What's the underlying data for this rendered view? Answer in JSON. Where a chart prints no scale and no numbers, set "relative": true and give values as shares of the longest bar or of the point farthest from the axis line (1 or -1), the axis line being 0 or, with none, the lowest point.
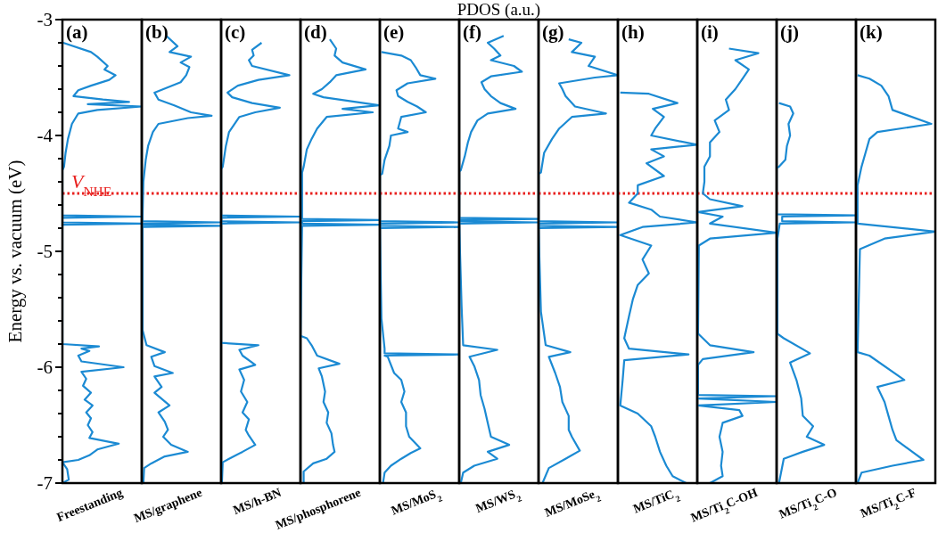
{
  "chart_data": [
    {
      "type": "line",
      "orientation": "horizontal",
      "relative": true,
      "title": "(a)",
      "xlabel": "Freestanding",
      "ylabel": "Energy vs. vacuum (eV)",
      "annotations": [
        "PDOS (a.u.)"
      ],
      "color": "#1b8ad3",
      "ylim": [
        -7,
        -3
      ],
      "yticks": [
        -7,
        {
          "value": -6.8,
          "label": null
        },
        {
          "value": -6.6,
          "label": null
        },
        {
          "value": -6.4,
          "label": null
        },
        {
          "value": -6.2,
          "label": null
        },
        -6,
        {
          "value": -5.8,
          "label": null
        },
        {
          "value": -5.6,
          "label": null
        },
        {
          "value": -5.4,
          "label": null
        },
        {
          "value": -5.2,
          "label": null
        },
        -5,
        {
          "value": -4.8,
          "label": null
        },
        {
          "value": -4.6,
          "label": null
        },
        {
          "value": -4.4,
          "label": null
        },
        {
          "value": -4.2,
          "label": null
        },
        -4,
        {
          "value": -3.8,
          "label": null
        },
        {
          "value": -3.6,
          "label": null
        },
        {
          "value": -3.4,
          "label": null
        },
        {
          "value": -3.2,
          "label": null
        },
        -3
      ],
      "ref_lines": [
        {
          "axis": "y",
          "value": -4.5,
          "label": "V$_{NHE}$",
          "color": "#e8201e",
          "line_style": "dotted"
        }
      ],
      "x": [
        -3.2,
        -3.28,
        -3.32,
        -3.4,
        -3.43,
        -3.48,
        -3.52,
        -3.57,
        -3.61,
        -3.66,
        -3.69,
        -3.71,
        -3.73,
        -3.75,
        -3.78,
        -3.81,
        -3.9,
        -4.03,
        -4.15,
        -4.27,
        -4.3,
        -4.69,
        -4.7,
        -4.71,
        -4.75,
        -4.76,
        -4.77,
        -5.8,
        -5.82,
        -5.84,
        -5.86,
        -5.9,
        -5.95,
        -6.0,
        -6.04,
        -6.1,
        -6.16,
        -6.22,
        -6.28,
        -6.33,
        -6.39,
        -6.44,
        -6.5,
        -6.56,
        -6.61,
        -6.66,
        -6.71,
        -6.76,
        -6.8,
        -6.82,
        -6.88,
        -6.97,
        -7.0
      ],
      "values": [
        0.01,
        0.36,
        0.44,
        0.57,
        0.53,
        0.67,
        0.59,
        0.36,
        0.2,
        0.14,
        0.51,
        0.84,
        0.32,
        1,
        0.44,
        0.2,
        0.12,
        0.07,
        0.04,
        0.02,
        0,
        0,
        1,
        0,
        0,
        1,
        0,
        0,
        0.46,
        0.24,
        0.34,
        0.2,
        0.24,
        0.77,
        0.24,
        0.3,
        0.26,
        0.36,
        0.28,
        0.38,
        0.3,
        0.36,
        0.32,
        0.38,
        0.34,
        0.71,
        0.44,
        0.34,
        0.2,
        0,
        0.06,
        0.08,
        0
      ]
    },
    {
      "type": "line",
      "orientation": "horizontal",
      "relative": true,
      "title": "(b)",
      "xlabel": "MS/graphene",
      "color": "#1b8ad3",
      "ylim": [
        -7,
        -3
      ],
      "tick_labels": false,
      "ref_lines": [
        {
          "axis": "y",
          "value": -4.5,
          "color": "#e8201e",
          "line_style": "dotted"
        }
      ],
      "x": [
        -3.14,
        -3.23,
        -3.28,
        -3.32,
        -3.37,
        -3.41,
        -3.48,
        -3.54,
        -3.63,
        -3.69,
        -3.74,
        -3.8,
        -3.83,
        -3.85,
        -3.9,
        -3.97,
        -4.09,
        -4.21,
        -4.4,
        -4.7,
        -4.74,
        -4.75,
        -4.76,
        -4.77,
        -4.78,
        -4.79,
        -5.68,
        -5.81,
        -5.87,
        -5.91,
        -5.99,
        -6.05,
        -6.08,
        -6.17,
        -6.22,
        -6.33,
        -6.39,
        -6.47,
        -6.54,
        -6.6,
        -6.67,
        -6.73,
        -6.77,
        -6.83,
        -6.87,
        -7.0
      ],
      "values": [
        0.31,
        0.45,
        0.35,
        0.62,
        0.49,
        0.6,
        0.56,
        0.49,
        0.16,
        0.21,
        0.41,
        0.62,
        0.88,
        0.58,
        0.21,
        0.14,
        0.08,
        0.05,
        0.02,
        0.01,
        0.01,
        1,
        0.01,
        0.01,
        1,
        0.01,
        0.01,
        0.06,
        0.29,
        0.12,
        0.16,
        0.39,
        0.16,
        0.25,
        0.16,
        0.35,
        0.21,
        0.29,
        0.33,
        0.27,
        0.37,
        0.58,
        0.29,
        0.12,
        0.03,
        0.02
      ]
    },
    {
      "type": "line",
      "orientation": "horizontal",
      "relative": true,
      "title": "(c)",
      "xlabel": "MS/h-BN",
      "color": "#1b8ad3",
      "ylim": [
        -7,
        -3
      ],
      "tick_labels": false,
      "ref_lines": [
        {
          "axis": "y",
          "value": -4.5,
          "color": "#e8201e",
          "line_style": "dotted"
        }
      ],
      "x": [
        -3.2,
        -3.26,
        -3.31,
        -3.35,
        -3.4,
        -3.48,
        -3.52,
        -3.57,
        -3.63,
        -3.67,
        -3.72,
        -3.76,
        -3.8,
        -3.84,
        -3.97,
        -4.09,
        -4.27,
        -4.29,
        -4.69,
        -4.7,
        -4.71,
        -4.74,
        -4.75,
        -4.76,
        -5.79,
        -5.81,
        -5.85,
        -5.9,
        -5.98,
        -6.02,
        -6.11,
        -6.21,
        -6.3,
        -6.39,
        -6.45,
        -6.54,
        -6.59,
        -6.67,
        -6.73,
        -6.79,
        -6.82,
        -7.0
      ],
      "values": [
        0.51,
        0.39,
        0.41,
        0.35,
        0.39,
        0.86,
        0.47,
        0.21,
        0.08,
        0.14,
        0.39,
        0.74,
        0.43,
        0.23,
        0.1,
        0.06,
        0.02,
        0,
        0,
        1,
        0,
        0,
        1,
        0,
        0,
        0.47,
        0.23,
        0.27,
        0.43,
        0.23,
        0.29,
        0.25,
        0.33,
        0.27,
        0.35,
        0.31,
        0.35,
        0.43,
        0.27,
        0.1,
        0.02,
        0.01
      ]
    },
    {
      "type": "line",
      "orientation": "horizontal",
      "relative": true,
      "title": "(d)",
      "xlabel": "MS/phosphorene",
      "color": "#1b8ad3",
      "ylim": [
        -7,
        -3
      ],
      "tick_labels": false,
      "ref_lines": [
        {
          "axis": "y",
          "value": -4.5,
          "color": "#e8201e",
          "line_style": "dotted"
        }
      ],
      "x": [
        -3.17,
        -3.25,
        -3.31,
        -3.37,
        -3.43,
        -3.48,
        -3.54,
        -3.6,
        -3.64,
        -3.67,
        -3.74,
        -3.77,
        -3.8,
        -3.84,
        -3.94,
        -4.03,
        -4.12,
        -4.27,
        -4.32,
        -4.72,
        -4.73,
        -4.74,
        -4.76,
        -4.77,
        -4.78,
        -5.73,
        -5.75,
        -5.81,
        -5.9,
        -5.97,
        -6.01,
        -6.08,
        -6.21,
        -6.3,
        -6.39,
        -6.48,
        -6.57,
        -6.67,
        -6.73,
        -6.79,
        -6.83,
        -6.9,
        -7.0
      ],
      "values": [
        0.37,
        0.45,
        0.43,
        0.53,
        0.82,
        0.45,
        0.37,
        0.27,
        0.16,
        0.29,
        0.99,
        0.53,
        0.91,
        0.33,
        0.21,
        0.14,
        0.08,
        0.04,
        0.02,
        0.02,
        1,
        0.02,
        0.02,
        1,
        0.02,
        0,
        0.08,
        0.14,
        0.21,
        0.49,
        0.23,
        0.27,
        0.31,
        0.29,
        0.35,
        0.33,
        0.39,
        0.41,
        0.43,
        0.33,
        0.16,
        0.04,
        0.04
      ]
    },
    {
      "type": "line",
      "orientation": "horizontal",
      "relative": true,
      "title": "(e)",
      "xlabel": "MS/MoS$_{2}$",
      "color": "#1b8ad3",
      "ylim": [
        -7,
        -3
      ],
      "tick_labels": false,
      "ref_lines": [
        {
          "axis": "y",
          "value": -4.5,
          "color": "#e8201e",
          "line_style": "dotted"
        }
      ],
      "x": [
        -3.28,
        -3.31,
        -3.35,
        -3.41,
        -3.48,
        -3.51,
        -3.55,
        -3.61,
        -3.66,
        -3.71,
        -3.75,
        -3.8,
        -3.84,
        -3.94,
        -3.97,
        -4.0,
        -4.09,
        -4.21,
        -4.33,
        -4.34,
        -4.74,
        -4.75,
        -4.76,
        -4.78,
        -4.79,
        -4.8,
        -5.58,
        -5.84,
        -5.88,
        -5.89,
        -5.9,
        -5.91,
        -6.05,
        -6.11,
        -6.21,
        -6.3,
        -6.39,
        -6.51,
        -6.6,
        -6.7,
        -6.74,
        -6.79,
        -6.85,
        -6.91,
        -7.0
      ],
      "values": [
        0.02,
        0.27,
        0.39,
        0.45,
        0.51,
        0.7,
        0.35,
        0.21,
        0.23,
        0.35,
        0.47,
        0.58,
        0.27,
        0.23,
        0.35,
        0.14,
        0.12,
        0.06,
        0.03,
        0,
        0,
        1,
        0,
        0,
        1,
        0,
        0.02,
        0.06,
        0.06,
        1,
        0.06,
        0.1,
        0.18,
        0.27,
        0.31,
        0.27,
        0.33,
        0.33,
        0.37,
        0.51,
        0.39,
        0.27,
        0.14,
        0.06,
        0.04
      ]
    },
    {
      "type": "line",
      "orientation": "horizontal",
      "relative": true,
      "title": "(f)",
      "xlabel": "MS/WS$_{2}$",
      "color": "#1b8ad3",
      "ylim": [
        -7,
        -3
      ],
      "tick_labels": false,
      "ref_lines": [
        {
          "axis": "y",
          "value": -4.5,
          "color": "#e8201e",
          "line_style": "dotted"
        }
      ],
      "x": [
        -3.14,
        -3.2,
        -3.25,
        -3.31,
        -3.35,
        -3.4,
        -3.45,
        -3.49,
        -3.54,
        -3.6,
        -3.66,
        -3.72,
        -3.77,
        -3.81,
        -3.87,
        -3.97,
        -4.06,
        -4.18,
        -4.3,
        -4.31,
        -4.71,
        -4.72,
        -4.73,
        -4.74,
        -4.75,
        -4.76,
        -5.47,
        -5.81,
        -5.85,
        -5.91,
        -5.99,
        -6.11,
        -6.24,
        -6.36,
        -6.48,
        -6.6,
        -6.67,
        -6.73,
        -6.79,
        -6.85,
        -6.91,
        -7.0
      ],
      "values": [
        0.56,
        0.36,
        0.44,
        0.52,
        0.4,
        0.69,
        0.79,
        0.4,
        0.28,
        0.32,
        0.4,
        0.52,
        0.71,
        0.36,
        0.23,
        0.15,
        0.11,
        0.07,
        0.02,
        0,
        0,
        1,
        0,
        0,
        1,
        0,
        0.03,
        0.05,
        0.48,
        0.13,
        0.19,
        0.25,
        0.27,
        0.32,
        0.36,
        0.4,
        0.63,
        0.36,
        0.48,
        0.19,
        0.05,
        0.02
      ]
    },
    {
      "type": "line",
      "orientation": "horizontal",
      "relative": true,
      "title": "(g)",
      "xlabel": "MS/MoSe$_{2}$",
      "color": "#1b8ad3",
      "ylim": [
        -7,
        -3
      ],
      "tick_labels": false,
      "ref_lines": [
        {
          "axis": "y",
          "value": -4.5,
          "color": "#e8201e",
          "line_style": "dotted"
        }
      ],
      "x": [
        -3.17,
        -3.2,
        -3.28,
        -3.32,
        -3.4,
        -3.48,
        -3.5,
        -3.55,
        -3.6,
        -3.66,
        -3.75,
        -3.81,
        -3.84,
        -3.94,
        -4.03,
        -4.15,
        -4.32,
        -4.33,
        -4.74,
        -4.75,
        -4.76,
        -4.78,
        -4.79,
        -4.8,
        -5.52,
        -5.81,
        -5.87,
        -5.91,
        -6.05,
        -6.17,
        -6.3,
        -6.42,
        -6.54,
        -6.6,
        -6.72,
        -6.79,
        -6.87,
        -7.0
      ],
      "values": [
        0.38,
        0.54,
        0.42,
        0.71,
        0.63,
        1,
        0.71,
        0.26,
        0.3,
        0.34,
        0.46,
        0.85,
        0.42,
        0.26,
        0.17,
        0.07,
        0.03,
        0,
        0,
        1,
        0,
        0,
        1,
        0,
        0.03,
        0.09,
        0.4,
        0.13,
        0.21,
        0.27,
        0.3,
        0.38,
        0.38,
        0.42,
        0.52,
        0.34,
        0.13,
        0.05
      ]
    },
    {
      "type": "line",
      "orientation": "horizontal",
      "relative": true,
      "title": "(h)",
      "xlabel": "MS/TiC$_{2}$",
      "color": "#1b8ad3",
      "ylim": [
        -7,
        -3
      ],
      "tick_labels": false,
      "ref_lines": [
        {
          "axis": "y",
          "value": -4.5,
          "color": "#e8201e",
          "line_style": "dotted"
        }
      ],
      "x": [
        -3.63,
        -3.64,
        -3.72,
        -3.77,
        -3.84,
        -3.94,
        -4.0,
        -4.08,
        -4.12,
        -4.18,
        -4.24,
        -4.35,
        -4.43,
        -4.5,
        -4.58,
        -4.64,
        -4.7,
        -4.75,
        -4.79,
        -4.86,
        -4.95,
        -5.07,
        -5.19,
        -5.29,
        -5.41,
        -5.56,
        -5.75,
        -5.84,
        -5.89,
        -5.94,
        -6.11,
        -6.33,
        -6.4,
        -6.51,
        -6.6,
        -6.73,
        -6.85,
        -6.94,
        -7.0
      ],
      "values": [
        0.03,
        0.39,
        0.75,
        0.44,
        0.58,
        0.47,
        0.42,
        1,
        0.42,
        0.58,
        0.36,
        0.58,
        0.25,
        0.25,
        0.14,
        0.42,
        0.53,
        1,
        0.31,
        0.03,
        0.42,
        0.31,
        0.39,
        0.25,
        0.19,
        0.14,
        0.08,
        0.14,
        0.89,
        0.08,
        0.06,
        0.03,
        0.25,
        0.42,
        0.47,
        0.53,
        0.61,
        0.69,
        0.86
      ]
    },
    {
      "type": "line",
      "orientation": "horizontal",
      "relative": true,
      "title": "(i)",
      "xlabel": "MS/Ti$_{2}$C-OH",
      "color": "#1b8ad3",
      "ylim": [
        -7,
        -3
      ],
      "tick_labels": false,
      "ref_lines": [
        {
          "axis": "y",
          "value": -4.5,
          "color": "#e8201e",
          "line_style": "dotted"
        }
      ],
      "x": [
        -3.25,
        -3.29,
        -3.35,
        -3.43,
        -3.51,
        -3.6,
        -3.69,
        -3.78,
        -3.87,
        -3.97,
        -4.06,
        -4.18,
        -4.27,
        -4.4,
        -4.5,
        -4.55,
        -4.61,
        -4.66,
        -4.7,
        -4.76,
        -4.84,
        -4.89,
        -4.95,
        -5.71,
        -5.81,
        -5.87,
        -5.93,
        -5.98,
        -6.24,
        -6.25,
        -6.27,
        -6.3,
        -6.33,
        -6.37,
        -6.42,
        -6.48,
        -6.6,
        -6.73,
        -6.85,
        -6.94,
        -7.0
      ],
      "values": [
        0.4,
        0.77,
        0.48,
        0.65,
        0.57,
        0.48,
        0.36,
        0.4,
        0.22,
        0.28,
        0.16,
        0.16,
        0.09,
        0.09,
        0.07,
        0.16,
        0.57,
        0.01,
        0.32,
        0.16,
        1,
        0.16,
        0.02,
        0.01,
        0.16,
        0.71,
        0.07,
        0.01,
        0.01,
        1,
        0.01,
        1,
        0.01,
        0.53,
        0.57,
        0.32,
        0.28,
        0.32,
        0.3,
        0.32,
        0.16
      ]
    },
    {
      "type": "line",
      "orientation": "horizontal",
      "relative": true,
      "title": "(j)",
      "xlabel": "MS/Ti$_{2}$C-O",
      "color": "#1b8ad3",
      "ylim": [
        -7,
        -3
      ],
      "tick_labels": false,
      "ref_lines": [
        {
          "axis": "y",
          "value": -4.5,
          "color": "#e8201e",
          "line_style": "dotted"
        }
      ],
      "x": [
        -3.72,
        -3.75,
        -3.81,
        -3.9,
        -4.0,
        -4.09,
        -4.21,
        -4.27,
        -4.28,
        -4.68,
        -4.69,
        -4.7,
        -4.74,
        -4.75,
        -4.76,
        -4.89,
        -5.71,
        -5.75,
        -5.88,
        -5.96,
        -6.11,
        -6.27,
        -6.42,
        -6.51,
        -6.6,
        -6.67,
        -6.73,
        -6.79,
        -7.0
      ],
      "values": [
        0.03,
        0.17,
        0.21,
        0.15,
        0.17,
        0.13,
        0.11,
        0.03,
        0,
        0,
        1,
        0.07,
        0.07,
        1,
        0.04,
        0.01,
        0.01,
        0.09,
        0.42,
        0.17,
        0.25,
        0.31,
        0.33,
        0.46,
        0.38,
        0.6,
        0.33,
        0.09,
        0.03
      ]
    },
    {
      "type": "line",
      "orientation": "horizontal",
      "relative": true,
      "title": "(k)",
      "xlabel": "MS/Ti$_{2}$C-F",
      "color": "#1b8ad3",
      "ylim": [
        -7,
        -3
      ],
      "tick_labels": false,
      "ref_lines": [
        {
          "axis": "y",
          "value": -4.5,
          "color": "#e8201e",
          "line_style": "dotted"
        }
      ],
      "x": [
        -3.48,
        -3.51,
        -3.57,
        -3.66,
        -3.78,
        -3.9,
        -3.97,
        -4.03,
        -4.15,
        -4.27,
        -4.43,
        -4.76,
        -4.83,
        -4.89,
        -4.98,
        -5.87,
        -5.9,
        -6.11,
        -6.17,
        -6.3,
        -6.42,
        -6.54,
        -6.63,
        -6.8,
        -6.85,
        -6.91,
        -7.0
      ],
      "values": [
        0.02,
        0.17,
        0.32,
        0.41,
        0.46,
        0.95,
        0.27,
        0.17,
        0.12,
        0.07,
        0.02,
        0.02,
        1,
        0.36,
        0.05,
        0.02,
        0.17,
        0.61,
        0.27,
        0.36,
        0.41,
        0.46,
        0.51,
        0.85,
        0.46,
        0.07,
        0.02
      ]
    }
  ]
}
